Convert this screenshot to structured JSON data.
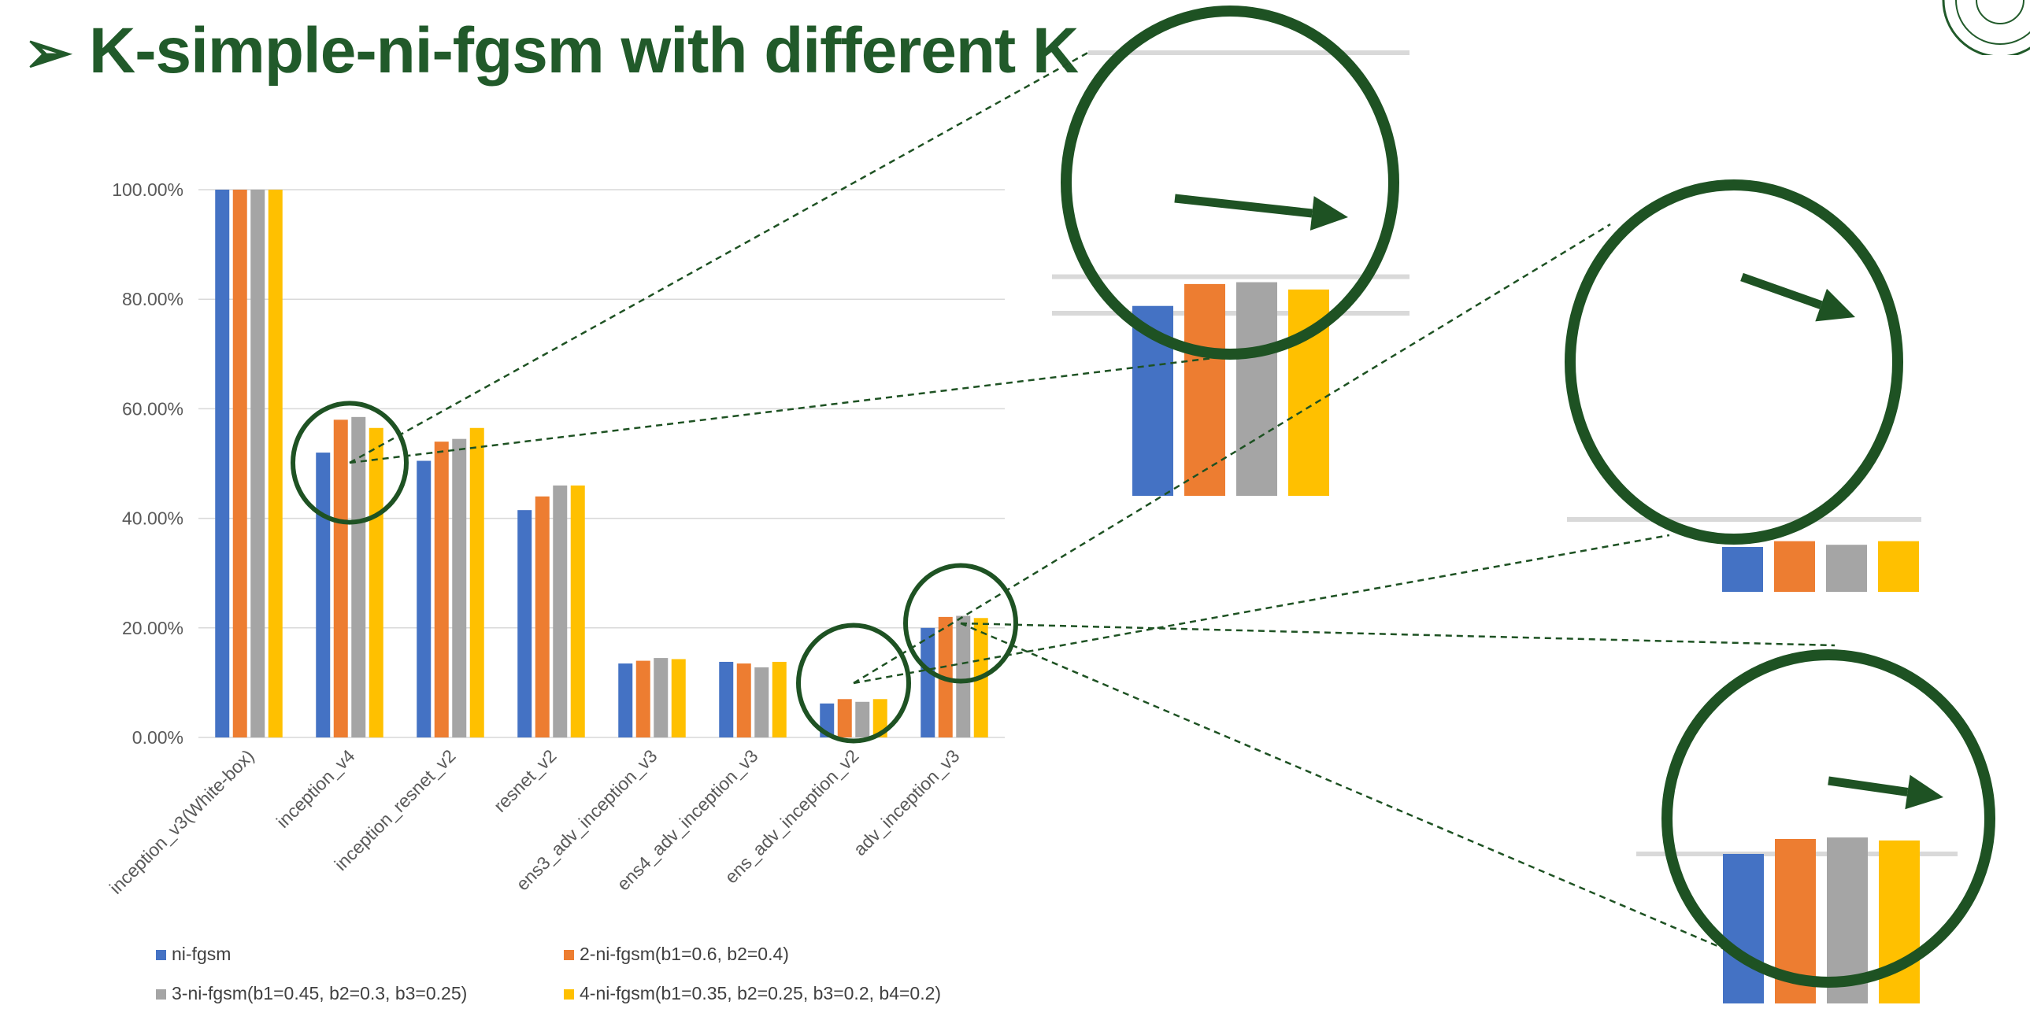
{
  "slide": {
    "bullet": "➢",
    "title": "K-simple-ni-fgsm with different K"
  },
  "colors": {
    "title": "#215a2a",
    "callout": "#1e5223",
    "gridline": "#d9d9d9"
  },
  "chart_data": {
    "type": "bar",
    "title": "",
    "xlabel": "",
    "ylabel": "",
    "ylim": [
      0,
      100
    ],
    "yticks": [
      "0.00%",
      "20.00%",
      "40.00%",
      "60.00%",
      "80.00%",
      "100.00%"
    ],
    "grid": true,
    "legend_position": "bottom",
    "categories": [
      "inception_v3(White-box)",
      "inception_v4",
      "inception_resnet_v2",
      "resnet_v2",
      "ens3_adv_inception_v3",
      "ens4_adv_inception_v3",
      "ens_adv_inception_v2",
      "adv_inception_v3"
    ],
    "series": [
      {
        "name": "ni-fgsm",
        "color": "#4472c4",
        "values": [
          100.0,
          52.0,
          50.5,
          41.5,
          13.5,
          13.8,
          6.2,
          20.0
        ]
      },
      {
        "name": "2-ni-fgsm(b1=0.6, b2=0.4)",
        "color": "#ed7d31",
        "values": [
          100.0,
          58.0,
          54.0,
          44.0,
          14.0,
          13.5,
          7.0,
          22.0
        ]
      },
      {
        "name": "3-ni-fgsm(b1=0.45, b2=0.3, b3=0.25)",
        "color": "#a5a5a5",
        "values": [
          100.0,
          58.5,
          54.5,
          46.0,
          14.5,
          12.8,
          6.5,
          22.2
        ]
      },
      {
        "name": "4-ni-fgsm(b1=0.35, b2=0.25, b3=0.2, b4=0.2)",
        "color": "#ffc000",
        "values": [
          100.0,
          56.5,
          56.5,
          46.0,
          14.3,
          13.8,
          7.0,
          21.8
        ]
      }
    ],
    "callouts": [
      {
        "category": "inception_v4"
      },
      {
        "category": "ens_adv_inception_v2"
      },
      {
        "category": "adv_inception_v3"
      }
    ]
  }
}
